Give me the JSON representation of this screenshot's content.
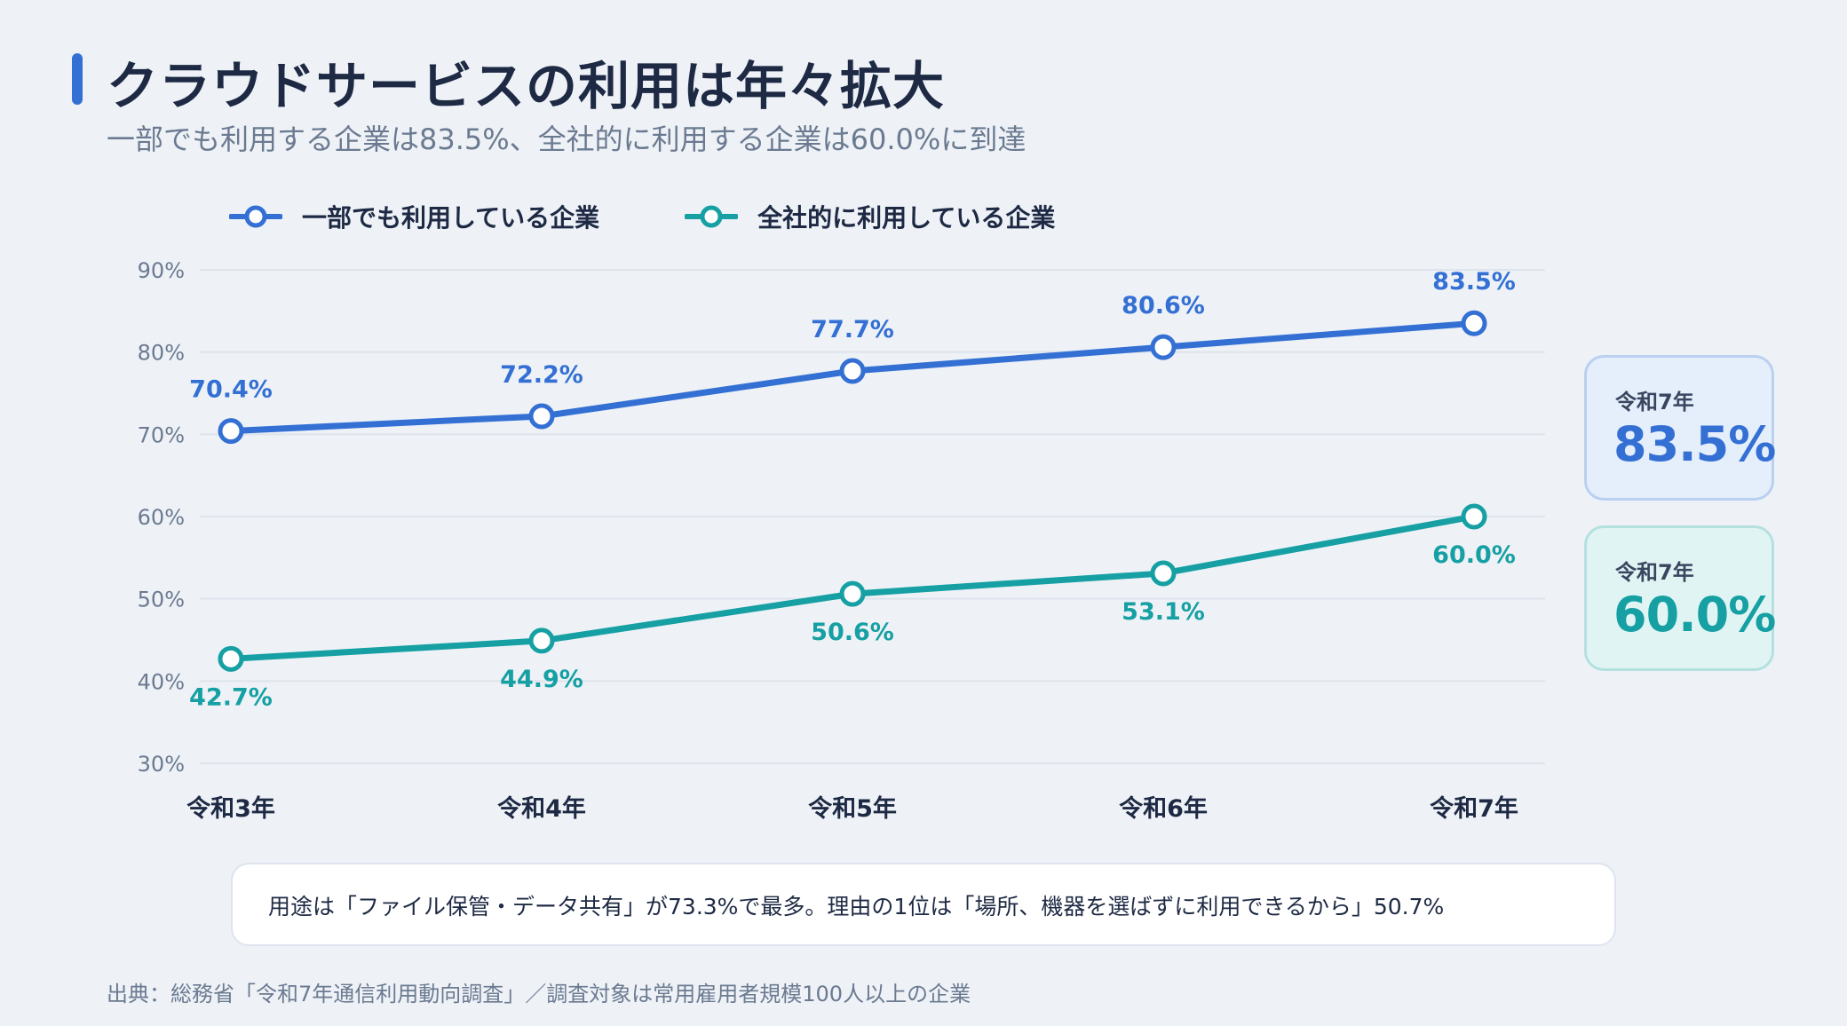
{
  "title": "クラウドサービスの利用は年々拡大",
  "subtitle": "一部でも利用する企業は83.5%、全社的に利用する企業は60.0%に到達",
  "colors": {
    "accent_blue": "#3470d4",
    "accent_teal": "#16a0a3",
    "text_dark": "#1e2a44",
    "text_muted": "#6b7a90",
    "grid": "#dfe4ec",
    "background": "#eef2f7"
  },
  "kpis": [
    {
      "label": "令和7年",
      "value": "83.5%"
    },
    {
      "label": "令和7年",
      "value": "60.0%"
    }
  ],
  "note": "用途は「ファイル保管・データ共有」が73.3%で最多。理由の1位は「場所、機器を選ばずに利用できるから」50.7%",
  "source": "出典：総務省「令和7年通信利用動向調査」／調査対象は常用雇用者規模100人以上の企業",
  "chart_data": {
    "type": "line",
    "categories": [
      "令和3年",
      "令和4年",
      "令和5年",
      "令和6年",
      "令和7年"
    ],
    "series": [
      {
        "name": "一部でも利用している企業",
        "values": [
          70.4,
          72.2,
          77.7,
          80.6,
          83.5
        ],
        "color": "#3470d4",
        "labels": [
          "70.4%",
          "72.2%",
          "77.7%",
          "80.6%",
          "83.5%"
        ],
        "label_position": "above"
      },
      {
        "name": "全社的に利用している企業",
        "values": [
          42.7,
          44.9,
          50.6,
          53.1,
          60.0
        ],
        "color": "#16a0a3",
        "labels": [
          "42.7%",
          "44.9%",
          "50.6%",
          "53.1%",
          "60.0%"
        ],
        "label_position": "below"
      }
    ],
    "yticks": [
      "90%",
      "80%",
      "70%",
      "60%",
      "50%",
      "40%",
      "30%"
    ],
    "ylim": [
      30,
      90
    ],
    "grid": true,
    "legend": "top-left"
  }
}
